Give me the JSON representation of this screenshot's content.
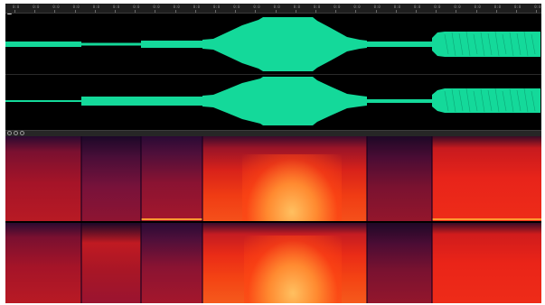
{
  "app": {
    "view": "waveform-and-spectral-frequency",
    "channels": 2
  },
  "colors": {
    "waveform": "#14d99a",
    "waveform_background": "#000000",
    "spectral_low": "#1a0722",
    "spectral_mid": "#a01020",
    "spectral_high": "#ff3a10",
    "spectral_peak": "#ffc060"
  },
  "ruler": {
    "tick_labels": [
      "0:0",
      "0:0",
      "0:0",
      "0:0",
      "0:0",
      "0:0",
      "0:0",
      "0:0",
      "0:0",
      "0:0",
      "0:0",
      "0:0",
      "0:0",
      "0:0",
      "0:0",
      "0:0",
      "0:0",
      "0:0",
      "0:0",
      "0:0",
      "0:0",
      "0:0",
      "0:0",
      "0:0",
      "0:0",
      "0:0",
      "0:0"
    ]
  },
  "icons": {
    "track_marker": "square-marker-icon",
    "view_toolbar": [
      "circle-icon",
      "circle-icon",
      "circle-icon"
    ]
  }
}
